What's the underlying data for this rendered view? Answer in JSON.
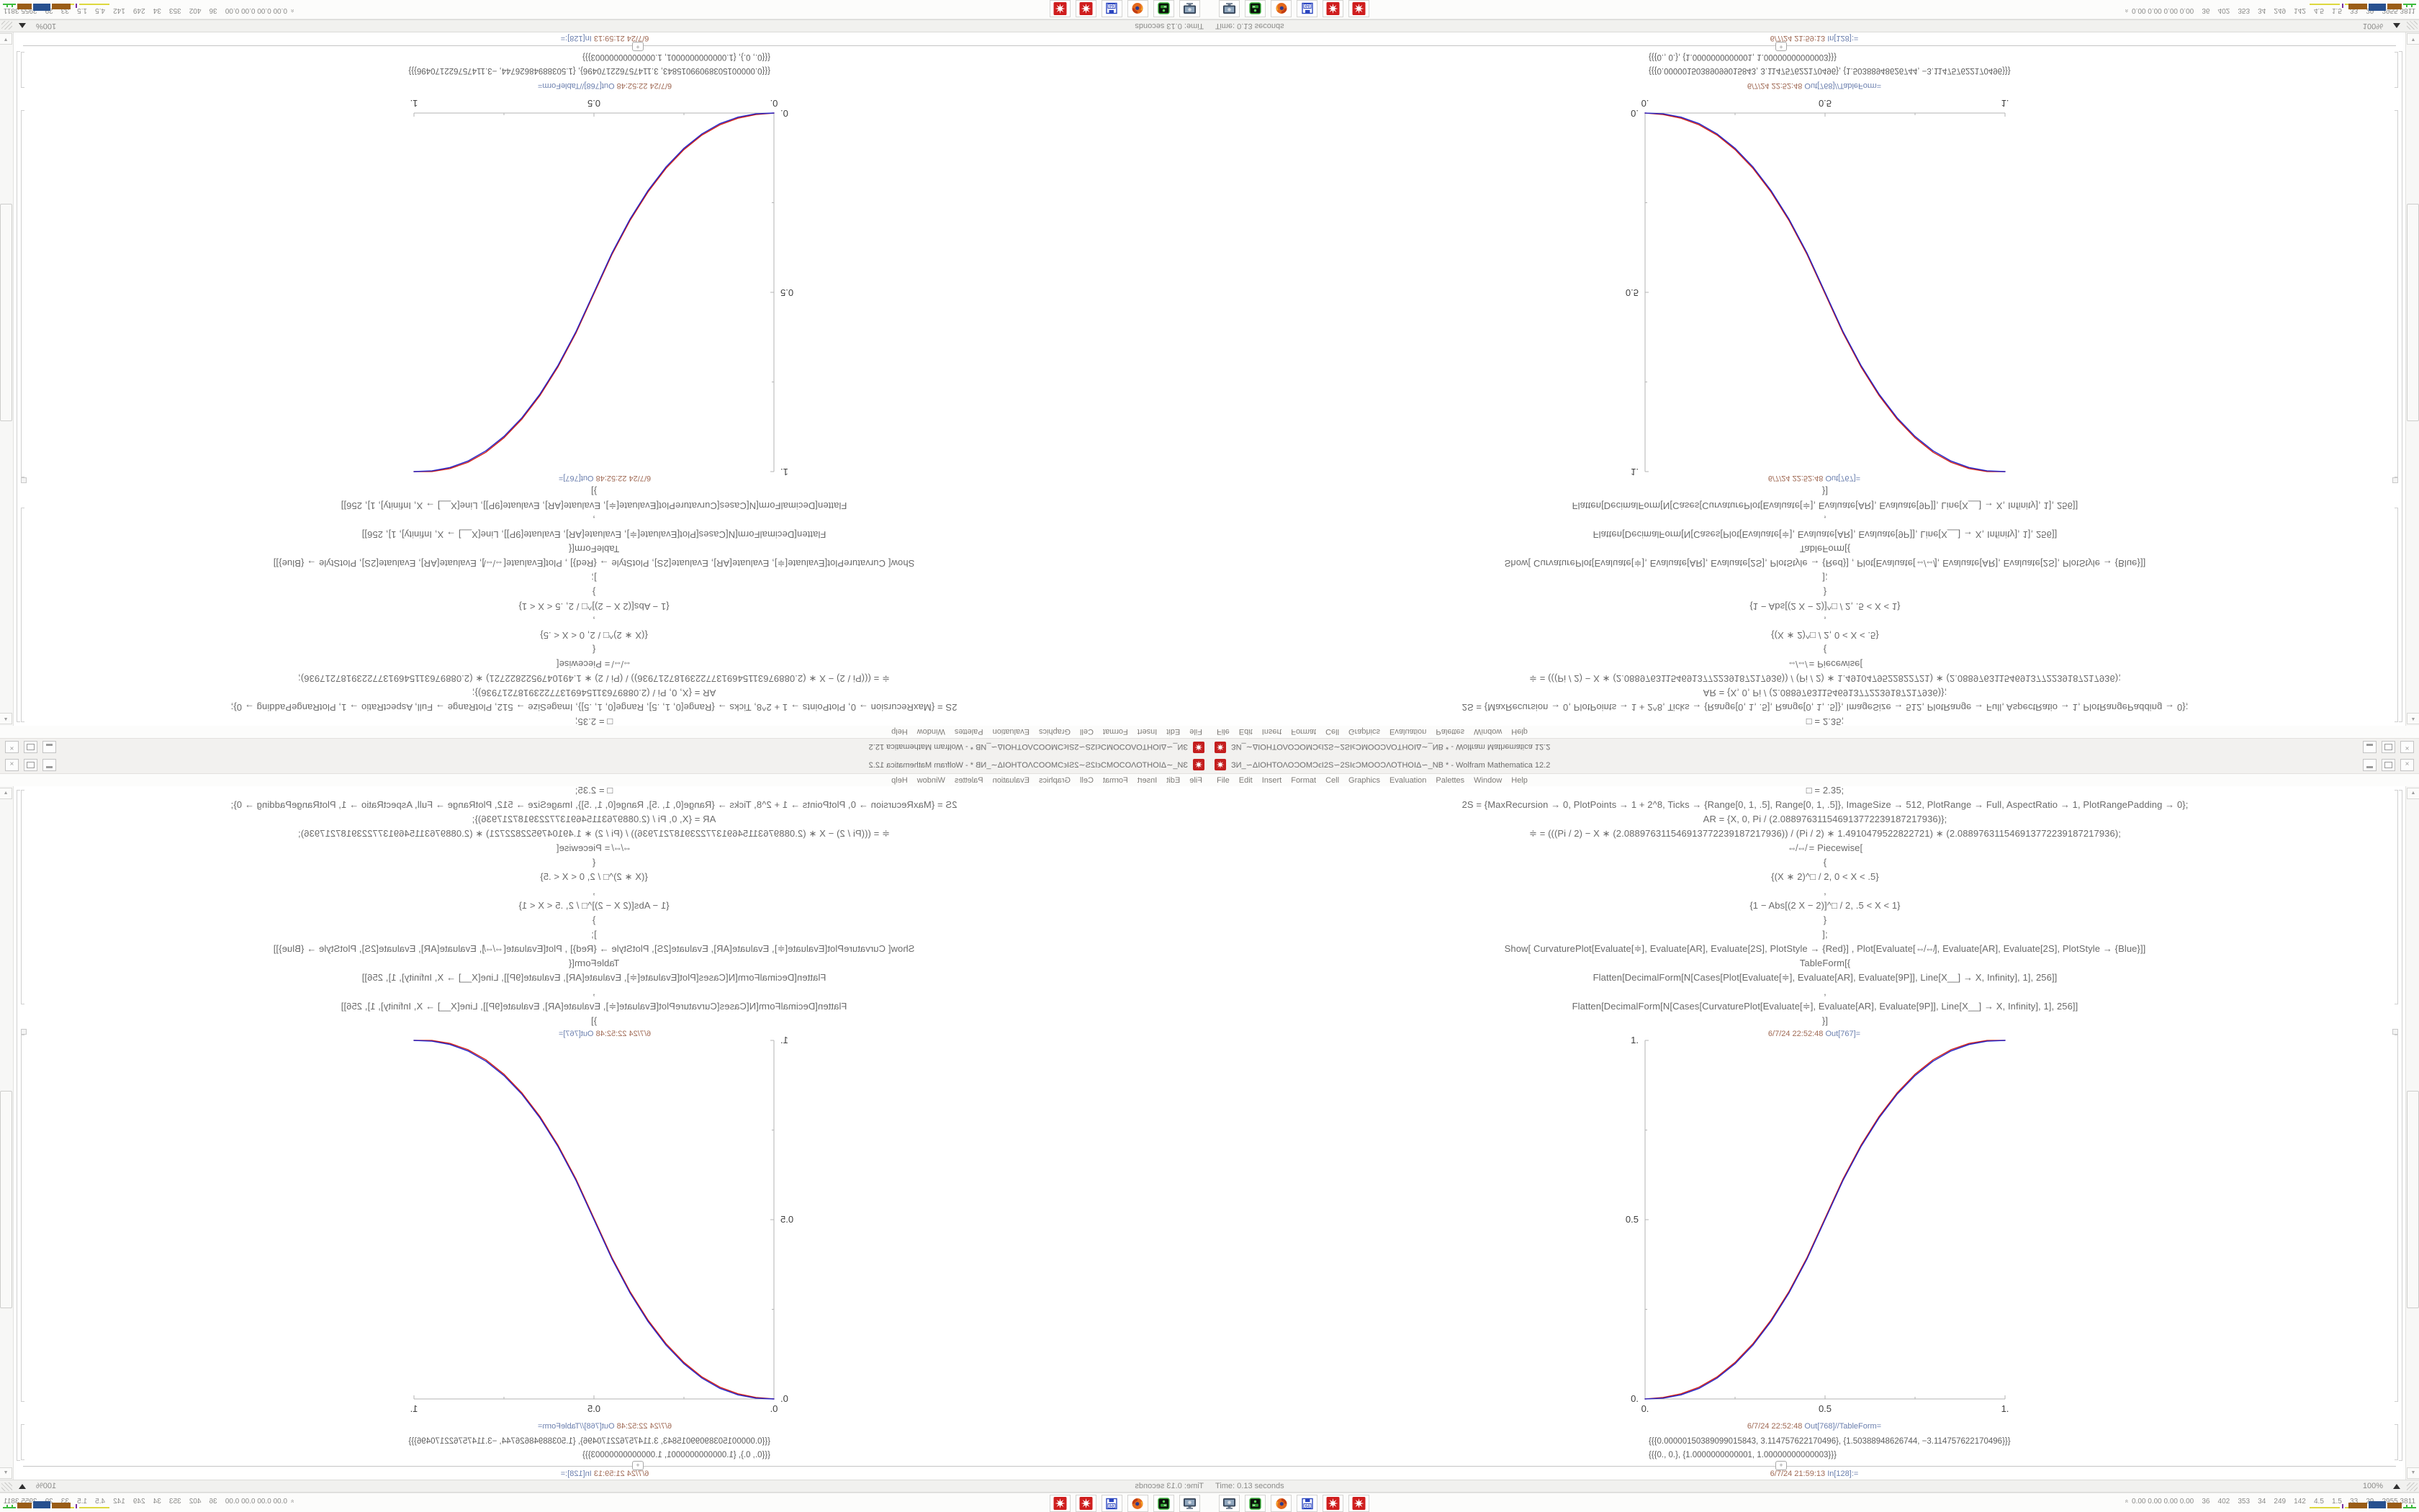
{
  "chart_data": {
    "type": "line",
    "title": "",
    "xlabel": "",
    "ylabel": "",
    "xlim": [
      0,
      1
    ],
    "ylim": [
      0,
      1
    ],
    "grid": false,
    "legend_position": "none",
    "xticks": {
      "values": [
        0,
        0.5,
        1
      ],
      "labels": [
        "0.",
        "0.5",
        "1."
      ],
      "minor": [
        0.25,
        0.75
      ]
    },
    "yticks": {
      "values": [
        0,
        0.5,
        1
      ],
      "labels": [
        "0.",
        "0.5",
        "1."
      ],
      "minor": [
        0.25,
        0.75
      ]
    },
    "x": [
      0,
      0.05,
      0.1,
      0.15,
      0.2,
      0.25,
      0.3,
      0.35,
      0.4,
      0.45,
      0.5,
      0.55,
      0.6,
      0.65,
      0.7,
      0.75,
      0.8,
      0.85,
      0.9,
      0.95,
      1
    ],
    "series": [
      {
        "name": "CurvaturePlot PlotStyle Red",
        "color": "#d01d14",
        "values": [
          0,
          0.0042,
          0.0144,
          0.033,
          0.0615,
          0.1021,
          0.1545,
          0.2203,
          0.3,
          0.3943,
          0.504,
          0.6137,
          0.708,
          0.7877,
          0.8535,
          0.9059,
          0.946,
          0.974,
          0.9916,
          0.9998,
          1
        ]
      },
      {
        "name": "Plot PlotStyle Blue",
        "color": "#2424c8",
        "values": [
          0,
          0.0022,
          0.0114,
          0.0295,
          0.058,
          0.0981,
          0.1505,
          0.2163,
          0.296,
          0.3903,
          0.5,
          0.6097,
          0.704,
          0.7837,
          0.8495,
          0.9019,
          0.942,
          0.9705,
          0.9886,
          0.9978,
          1
        ]
      }
    ]
  },
  "screen": {
    "window": {
      "title": "ЗИ_∽ΔΙΟΗΤΟΛΟƆΟΜƆϵΙ2S∽2SΙϵƆΜΟΟƆΛΟΤΗΟΙΔ∽_ΝΒ * - Wolfram Mathematica 12.2",
      "menu": [
        "File",
        "Edit",
        "Insert",
        "Format",
        "Cell",
        "Graphics",
        "Evaluation",
        "Palettes",
        "Window",
        "Help"
      ],
      "close_glyph": "×"
    },
    "notebook": {
      "code_lines": [
        "□ = 2.35;",
        "2S = {MaxRecursion → 0, PlotPoints → 1 + 2^8, Ticks → {Range[0, 1, .5], Range[0, 1, .5]}, ImageSize → 512, PlotRange → Full, AspectRatio → 1, PlotRangePadding → 0};",
        "AR = {X, 0, Pi / (2.088976311546913772239187217936)};",
        "≑ = (((Pi / 2) − X ∗ (2.088976311546913772239187217936)) / (Pi / 2) ∗ 1.4910479522822721) ∗ (2.088976311546913772239187217936);",
        "⇎⇎ = Piecewise[",
        "{",
        "{(X ∗ 2)^□ / 2, 0 < X < .5}",
        ",",
        "{1 − Abs[(2 X − 2)]^□ / 2, .5 < X < 1}",
        "}",
        "];",
        "Show[ CurvaturePlot[Evaluate[≑], Evaluate[AR], Evaluate[2S], PlotStyle → {Red}] ,  Plot[Evaluate[⇎⇎], Evaluate[AR], Evaluate[2S], PlotStyle → {Blue}]]",
        "TableForm[{",
        "Flatten[DecimalForm[N[Cases[Plot[Evaluate[≑], Evaluate[AR], Evaluate[9P]], Line[X__] → X, Infinity], 1], 256]]",
        ",",
        "Flatten[DecimalForm[N[Cases[CurvaturePlot[Evaluate[≑], Evaluate[AR], Evaluate[9P]], Line[X__] → X, Infinity], 1], 256]]",
        "}]"
      ],
      "cells": {
        "out1": {
          "time": "6/7/24 22:52:48",
          "label": "Out[767]="
        },
        "out2": {
          "time": "6/7/24 22:52:48",
          "label": "Out[768]//TableForm="
        },
        "next_in": {
          "time": "6/7/24 21:59:13",
          "label": "In[128]:="
        }
      },
      "outputs": {
        "row1": "{{{0.00000150389099015843, 3.114757622170496}, {1.50388948626744, −3.114757622170496}}}",
        "row2": "{{{0., 0.}, {1.0000000000001, 1.00000000000003}}}"
      },
      "insert_marker": "+"
    },
    "status_bar": {
      "time": "Time: 0.13 seconds",
      "zoom": "100%"
    },
    "taskbar": {
      "icons": [
        "screenshot-tool",
        "disk-utility",
        "firefox",
        "floppy-64",
        "mathematica-kernel",
        "mathematica-kernel"
      ],
      "system_monitor_text": "0.00 0.00 0.00 0.00    36    402    353    34    249    142    4.5    1.5    33    29    2955 3811"
    }
  }
}
